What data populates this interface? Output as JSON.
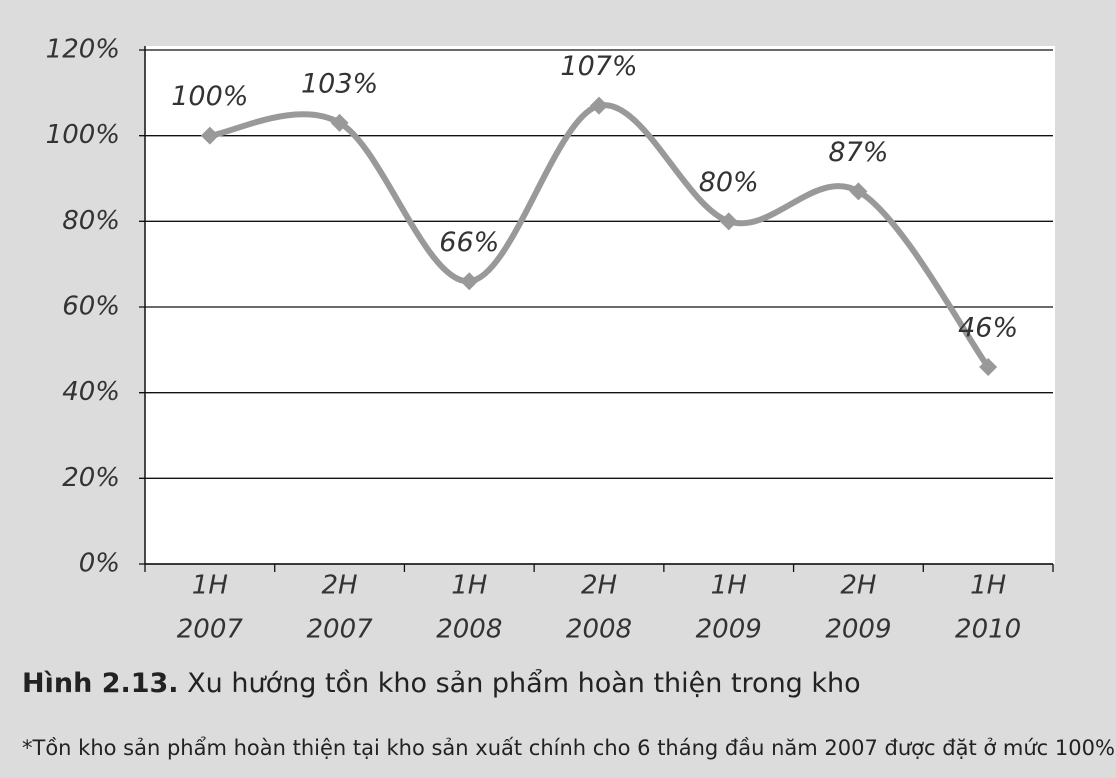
{
  "chart_data": {
    "type": "line",
    "categories": [
      [
        "1H",
        "2007"
      ],
      [
        "2H",
        "2007"
      ],
      [
        "1H",
        "2008"
      ],
      [
        "2H",
        "2008"
      ],
      [
        "1H",
        "2009"
      ],
      [
        "2H",
        "2009"
      ],
      [
        "1H",
        "2010"
      ]
    ],
    "values": [
      100,
      103,
      66,
      107,
      80,
      87,
      46
    ],
    "value_labels": [
      "100%",
      "103%",
      "66%",
      "107%",
      "80%",
      "87%",
      "46%"
    ],
    "color": "#999999",
    "ylim": [
      0,
      120
    ],
    "yticks": [
      {
        "value": 0,
        "label": "0%"
      },
      {
        "value": 20,
        "label": "20%"
      },
      {
        "value": 40,
        "label": "40%"
      },
      {
        "value": 60,
        "label": "60%"
      },
      {
        "value": 80,
        "label": "80%"
      },
      {
        "value": 100,
        "label": "100%"
      },
      {
        "value": 120,
        "label": "120%"
      }
    ],
    "grid": true,
    "caption_label": "Hình 2.13.",
    "caption": "Xu hướng tồn kho sản phẩm hoàn thiện trong kho",
    "note": "*Tồn kho sản phẩm hoàn thiện tại kho sản xuất chính cho 6 tháng đầu năm 2007 được đặt ở mức 100%"
  }
}
